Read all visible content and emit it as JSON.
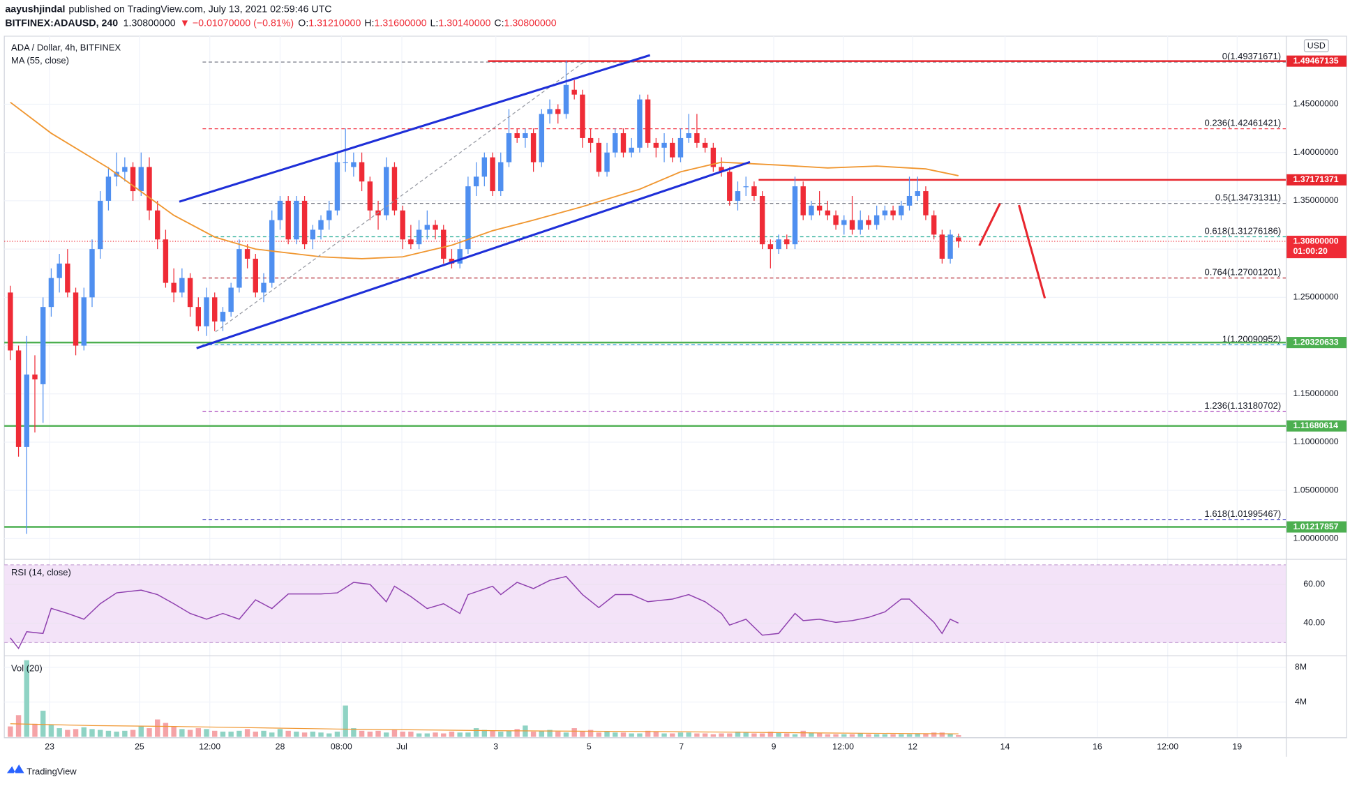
{
  "header": {
    "author": "aayushjindal",
    "published": "published on TradingView.com, July 13, 2021 02:59:46 UTC",
    "symbol": "BITFINEX:ADAUSD, 240",
    "last": "1.30800000",
    "change": "▼ −0.01070000 (−0.81%)",
    "ohlc": [
      {
        "key": "O:",
        "value": "1.31210000"
      },
      {
        "key": "H:",
        "value": "1.31600000"
      },
      {
        "key": "L:",
        "value": "1.30140000"
      },
      {
        "key": "C:",
        "value": "1.30800000"
      }
    ]
  },
  "footer": {
    "brand": "TradingView"
  },
  "chart_data": {
    "type": "candlestick",
    "title": "ADA / Dollar, 4h, BITFINEX",
    "currency": "USD",
    "up_color": "#4f8ff0",
    "down_color": "#ef2b36",
    "grid": true,
    "ylim": [
      0.9795,
      1.5205
    ],
    "yticks": [
      {
        "value": 1.0,
        "label": "1.00000000"
      },
      {
        "value": 1.05,
        "label": "1.05000000"
      },
      {
        "value": 1.1,
        "label": "1.10000000"
      },
      {
        "value": 1.15,
        "label": "1.15000000"
      },
      {
        "value": 1.2,
        "label": "1.20000000"
      },
      {
        "value": 1.25,
        "label": "1.25000000"
      },
      {
        "value": 1.3,
        "label": "1.30000000"
      },
      {
        "value": 1.35,
        "label": "1.35000000"
      },
      {
        "value": 1.4,
        "label": "1.40000000"
      },
      {
        "value": 1.45,
        "label": "1.45000000"
      }
    ],
    "xlim": [
      -0.74,
      156.1
    ],
    "xticks": [
      {
        "value": 4.8,
        "label": "23"
      },
      {
        "value": 15.8,
        "label": "25"
      },
      {
        "value": 24.4,
        "label": "12:00"
      },
      {
        "value": 33.0,
        "label": "28"
      },
      {
        "value": 40.5,
        "label": "08:00"
      },
      {
        "value": 47.9,
        "label": "Jul"
      },
      {
        "value": 59.4,
        "label": "3"
      },
      {
        "value": 70.8,
        "label": "5"
      },
      {
        "value": 82.1,
        "label": "7"
      },
      {
        "value": 93.4,
        "label": "9"
      },
      {
        "value": 101.9,
        "label": "12:00"
      },
      {
        "value": 110.4,
        "label": "12"
      },
      {
        "value": 121.7,
        "label": "14"
      },
      {
        "value": 133.0,
        "label": "16"
      },
      {
        "value": 141.6,
        "label": "12:00"
      },
      {
        "value": 150.1,
        "label": "19"
      }
    ],
    "ohlc": [
      [
        1.255,
        1.262,
        1.185,
        1.195
      ],
      [
        1.195,
        1.2,
        1.085,
        1.095
      ],
      [
        1.095,
        1.21,
        1.005,
        1.17
      ],
      [
        1.17,
        1.19,
        1.11,
        1.165
      ],
      [
        1.16,
        1.25,
        1.12,
        1.24
      ],
      [
        1.24,
        1.28,
        1.23,
        1.27
      ],
      [
        1.27,
        1.295,
        1.255,
        1.285
      ],
      [
        1.285,
        1.3,
        1.25,
        1.255
      ],
      [
        1.255,
        1.26,
        1.19,
        1.2
      ],
      [
        1.2,
        1.26,
        1.195,
        1.25
      ],
      [
        1.25,
        1.31,
        1.24,
        1.3
      ],
      [
        1.3,
        1.36,
        1.29,
        1.35
      ],
      [
        1.35,
        1.385,
        1.34,
        1.375
      ],
      [
        1.375,
        1.4,
        1.365,
        1.38
      ],
      [
        1.38,
        1.395,
        1.37,
        1.385
      ],
      [
        1.385,
        1.39,
        1.35,
        1.36
      ],
      [
        1.36,
        1.4,
        1.355,
        1.385
      ],
      [
        1.385,
        1.395,
        1.33,
        1.34
      ],
      [
        1.34,
        1.35,
        1.3,
        1.31
      ],
      [
        1.31,
        1.32,
        1.26,
        1.265
      ],
      [
        1.265,
        1.28,
        1.245,
        1.255
      ],
      [
        1.255,
        1.28,
        1.25,
        1.27
      ],
      [
        1.27,
        1.275,
        1.23,
        1.24
      ],
      [
        1.24,
        1.25,
        1.215,
        1.22
      ],
      [
        1.22,
        1.26,
        1.21,
        1.25
      ],
      [
        1.25,
        1.255,
        1.215,
        1.225
      ],
      [
        1.225,
        1.24,
        1.215,
        1.235
      ],
      [
        1.235,
        1.265,
        1.23,
        1.26
      ],
      [
        1.26,
        1.31,
        1.255,
        1.3
      ],
      [
        1.3,
        1.305,
        1.28,
        1.29
      ],
      [
        1.29,
        1.295,
        1.25,
        1.255
      ],
      [
        1.255,
        1.275,
        1.245,
        1.265
      ],
      [
        1.265,
        1.34,
        1.26,
        1.33
      ],
      [
        1.33,
        1.355,
        1.32,
        1.35
      ],
      [
        1.35,
        1.355,
        1.305,
        1.31
      ],
      [
        1.31,
        1.355,
        1.305,
        1.35
      ],
      [
        1.35,
        1.355,
        1.3,
        1.305
      ],
      [
        1.31,
        1.325,
        1.3,
        1.32
      ],
      [
        1.32,
        1.335,
        1.31,
        1.33
      ],
      [
        1.33,
        1.35,
        1.32,
        1.34
      ],
      [
        1.34,
        1.4,
        1.335,
        1.39
      ],
      [
        1.39,
        1.425,
        1.38,
        1.39
      ],
      [
        1.385,
        1.4,
        1.375,
        1.39
      ],
      [
        1.39,
        1.4,
        1.36,
        1.37
      ],
      [
        1.37,
        1.375,
        1.33,
        1.34
      ],
      [
        1.34,
        1.35,
        1.32,
        1.335
      ],
      [
        1.335,
        1.395,
        1.33,
        1.385
      ],
      [
        1.385,
        1.39,
        1.335,
        1.34
      ],
      [
        1.34,
        1.345,
        1.3,
        1.31
      ],
      [
        1.31,
        1.325,
        1.3,
        1.305
      ],
      [
        1.305,
        1.33,
        1.3,
        1.32
      ],
      [
        1.32,
        1.34,
        1.31,
        1.325
      ],
      [
        1.325,
        1.33,
        1.31,
        1.32
      ],
      [
        1.32,
        1.325,
        1.285,
        1.29
      ],
      [
        1.29,
        1.3,
        1.28,
        1.285
      ],
      [
        1.285,
        1.31,
        1.28,
        1.3
      ],
      [
        1.3,
        1.375,
        1.295,
        1.365
      ],
      [
        1.365,
        1.39,
        1.355,
        1.375
      ],
      [
        1.375,
        1.4,
        1.365,
        1.395
      ],
      [
        1.395,
        1.4,
        1.355,
        1.36
      ],
      [
        1.36,
        1.4,
        1.355,
        1.39
      ],
      [
        1.39,
        1.445,
        1.385,
        1.42
      ],
      [
        1.42,
        1.425,
        1.41,
        1.415
      ],
      [
        1.415,
        1.425,
        1.405,
        1.42
      ],
      [
        1.42,
        1.425,
        1.38,
        1.39
      ],
      [
        1.39,
        1.445,
        1.385,
        1.44
      ],
      [
        1.44,
        1.455,
        1.43,
        1.445
      ],
      [
        1.445,
        1.45,
        1.43,
        1.44
      ],
      [
        1.44,
        1.495,
        1.435,
        1.47
      ],
      [
        1.465,
        1.475,
        1.455,
        1.46
      ],
      [
        1.46,
        1.465,
        1.405,
        1.415
      ],
      [
        1.415,
        1.425,
        1.4,
        1.41
      ],
      [
        1.41,
        1.415,
        1.375,
        1.38
      ],
      [
        1.38,
        1.41,
        1.375,
        1.4
      ],
      [
        1.4,
        1.425,
        1.395,
        1.42
      ],
      [
        1.42,
        1.425,
        1.395,
        1.4
      ],
      [
        1.4,
        1.415,
        1.395,
        1.405
      ],
      [
        1.405,
        1.46,
        1.4,
        1.455
      ],
      [
        1.455,
        1.46,
        1.405,
        1.41
      ],
      [
        1.41,
        1.415,
        1.395,
        1.405
      ],
      [
        1.405,
        1.42,
        1.39,
        1.41
      ],
      [
        1.41,
        1.415,
        1.39,
        1.395
      ],
      [
        1.395,
        1.425,
        1.39,
        1.415
      ],
      [
        1.415,
        1.44,
        1.41,
        1.42
      ],
      [
        1.42,
        1.44,
        1.405,
        1.41
      ],
      [
        1.41,
        1.415,
        1.4,
        1.405
      ],
      [
        1.405,
        1.41,
        1.38,
        1.385
      ],
      [
        1.385,
        1.395,
        1.375,
        1.38
      ],
      [
        1.38,
        1.385,
        1.345,
        1.35
      ],
      [
        1.35,
        1.37,
        1.34,
        1.36
      ],
      [
        1.365,
        1.375,
        1.355,
        1.365
      ],
      [
        1.365,
        1.37,
        1.35,
        1.355
      ],
      [
        1.355,
        1.36,
        1.3,
        1.305
      ],
      [
        1.305,
        1.31,
        1.28,
        1.3
      ],
      [
        1.3,
        1.315,
        1.295,
        1.31
      ],
      [
        1.31,
        1.315,
        1.3,
        1.305
      ],
      [
        1.305,
        1.375,
        1.3,
        1.365
      ],
      [
        1.365,
        1.37,
        1.33,
        1.335
      ],
      [
        1.335,
        1.35,
        1.33,
        1.345
      ],
      [
        1.345,
        1.36,
        1.335,
        1.34
      ],
      [
        1.34,
        1.35,
        1.33,
        1.335
      ],
      [
        1.335,
        1.34,
        1.32,
        1.325
      ],
      [
        1.325,
        1.335,
        1.315,
        1.33
      ],
      [
        1.33,
        1.355,
        1.315,
        1.32
      ],
      [
        1.32,
        1.34,
        1.315,
        1.33
      ],
      [
        1.33,
        1.335,
        1.32,
        1.325
      ],
      [
        1.325,
        1.345,
        1.32,
        1.335
      ],
      [
        1.335,
        1.345,
        1.33,
        1.34
      ],
      [
        1.34,
        1.345,
        1.33,
        1.335
      ],
      [
        1.335,
        1.35,
        1.33,
        1.345
      ],
      [
        1.345,
        1.375,
        1.34,
        1.355
      ],
      [
        1.355,
        1.375,
        1.35,
        1.36
      ],
      [
        1.36,
        1.365,
        1.33,
        1.335
      ],
      [
        1.335,
        1.34,
        1.31,
        1.315
      ],
      [
        1.315,
        1.32,
        1.285,
        1.29
      ],
      [
        1.29,
        1.32,
        1.285,
        1.315
      ],
      [
        1.312,
        1.316,
        1.3014,
        1.308
      ]
    ],
    "ma": {
      "name": "MA (55, close)",
      "color": "#f0962f",
      "x": [
        0,
        5,
        12,
        20,
        25,
        30,
        38,
        43,
        48,
        54,
        59,
        64,
        70,
        77,
        82,
        87,
        94,
        100,
        106,
        112,
        116
      ],
      "values": [
        1.452,
        1.42,
        1.384,
        1.335,
        1.3125,
        1.3,
        1.292,
        1.29,
        1.292,
        1.304,
        1.319,
        1.33,
        1.344,
        1.362,
        1.38,
        1.39,
        1.387,
        1.384,
        1.386,
        1.383,
        1.376
      ]
    },
    "levels": [
      {
        "value": 1.49467135,
        "label": "1.49467135",
        "color": "#e8262e"
      },
      {
        "value": 1.37171371,
        "label": "1.37171371",
        "color": "#e8262e"
      },
      {
        "value": 1.308,
        "label": "1.30800000",
        "sublabel": "01:00:20",
        "color": "#ef2b36"
      },
      {
        "value": 1.20320633,
        "label": "1.20320633",
        "color": "#4caf50"
      },
      {
        "value": 1.11680614,
        "label": "1.11680614",
        "color": "#4caf50"
      },
      {
        "value": 1.01217857,
        "label": "1.01217857",
        "color": "#4caf50"
      }
    ],
    "fibs": [
      {
        "label": "0(1.49371671)",
        "value": 1.49371671,
        "color": "#787b86"
      },
      {
        "label": "0.236(1.42461421)",
        "value": 1.42461421,
        "color": "#f23645"
      },
      {
        "label": "0.5(1.34731311)",
        "value": 1.34731311,
        "color": "#787b86"
      },
      {
        "label": "0.618(1.31276186)",
        "value": 1.31276186,
        "color": "#22ab94"
      },
      {
        "label": "0.764(1.27001201)",
        "value": 1.27001201,
        "color": "#b22833"
      },
      {
        "label": "1(1.20090952)",
        "value": 1.20090952,
        "color": "#2b9bd6"
      },
      {
        "label": "1.236(1.13180702)",
        "value": 1.13180702,
        "color": "#9c27b0"
      },
      {
        "label": "1.618(1.01995467)",
        "value": 1.01995467,
        "color": "#3f3fc0"
      }
    ],
    "rsi": {
      "name": "RSI (14, close)",
      "color": "#8e3fae",
      "band": [
        30,
        70
      ],
      "ylim": [
        23.6,
        72.4
      ],
      "yticks": [
        {
          "value": 40,
          "label": "40.00"
        },
        {
          "value": 60,
          "label": "60.00"
        }
      ],
      "x": [
        0,
        1,
        2,
        4,
        5,
        7,
        9,
        11,
        13,
        16,
        18,
        20,
        22,
        24,
        26,
        28,
        30,
        32,
        34,
        36,
        38,
        40,
        42,
        44,
        46,
        47,
        49,
        51,
        53,
        55,
        56,
        59,
        60,
        62,
        64,
        66,
        68,
        70,
        72,
        74,
        76,
        78,
        81,
        83,
        85,
        87,
        88,
        90,
        92,
        94,
        96,
        97,
        99,
        101,
        103,
        105,
        107,
        109,
        110,
        113,
        114,
        115,
        116
      ],
      "values": [
        32.4,
        27,
        35.6,
        34.7,
        47.6,
        45,
        42,
        50,
        55.6,
        57,
        54.7,
        50,
        45,
        42,
        45,
        42,
        52,
        47.5,
        55,
        55,
        55,
        55.6,
        61,
        60,
        51,
        59,
        53.7,
        47.5,
        50,
        45,
        54.7,
        59,
        54.7,
        61,
        57.8,
        62,
        64,
        54.7,
        48,
        54.7,
        54.7,
        51,
        52.4,
        54.7,
        51,
        45,
        39,
        42,
        33.8,
        34.7,
        45,
        41.3,
        42,
        40.4,
        41.3,
        43,
        45.8,
        52.4,
        52.4,
        40.4,
        34.7,
        42,
        40
      ]
    },
    "volume": {
      "name": "Vol (20)",
      "ylim": [
        0,
        9.2
      ],
      "yticks": [
        {
          "value": 4,
          "label": "4M"
        },
        {
          "value": 8,
          "label": "8M"
        }
      ],
      "up_color": "#8fd3c4",
      "down_color": "#f5a3a7",
      "values": [
        1.2,
        2.5,
        8.8,
        1.5,
        3.0,
        1.4,
        1.0,
        0.8,
        0.9,
        1.1,
        0.9,
        0.8,
        0.7,
        0.6,
        0.7,
        0.8,
        1.2,
        1.0,
        2.0,
        1.6,
        1.2,
        0.9,
        0.8,
        1.0,
        0.9,
        0.7,
        0.6,
        0.6,
        0.7,
        0.9,
        0.6,
        0.7,
        0.5,
        0.9,
        0.7,
        0.6,
        0.5,
        0.6,
        0.5,
        0.4,
        0.6,
        3.6,
        1.0,
        0.7,
        0.6,
        0.7,
        0.5,
        0.8,
        0.6,
        0.6,
        0.4,
        0.4,
        0.5,
        0.4,
        0.6,
        0.5,
        0.5,
        1.0,
        0.8,
        0.7,
        0.6,
        0.7,
        0.9,
        1.3,
        0.6,
        0.7,
        0.8,
        0.6,
        0.5,
        1.0,
        0.6,
        0.8,
        0.5,
        0.6,
        0.5,
        0.5,
        0.4,
        0.4,
        0.7,
        0.6,
        0.4,
        0.4,
        0.5,
        0.5,
        0.4,
        0.4,
        0.3,
        0.4,
        0.4,
        0.6,
        0.5,
        0.4,
        0.4,
        0.6,
        0.5,
        0.4,
        0.3,
        0.7,
        0.5,
        0.4,
        0.3,
        0.3,
        0.3,
        0.3,
        0.4,
        0.3,
        0.3,
        0.3,
        0.3,
        0.3,
        0.3,
        0.4,
        0.4,
        0.5,
        0.5,
        0.4,
        0.2
      ],
      "ma": {
        "color": "#f0962f",
        "x": [
          0,
          10,
          20,
          40,
          60,
          80,
          100,
          116
        ],
        "values": [
          1.5,
          1.3,
          1.2,
          0.9,
          0.7,
          0.6,
          0.45,
          0.35
        ]
      }
    }
  }
}
